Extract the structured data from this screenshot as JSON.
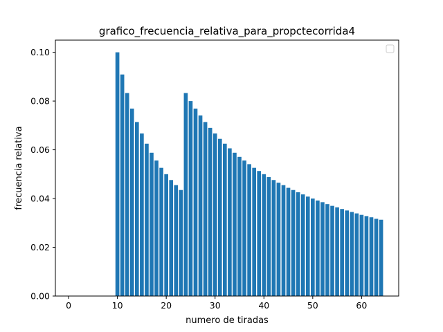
{
  "chart_data": {
    "type": "bar",
    "title": "grafico_frecuencia_relativa_para_propctecorrida4",
    "xlabel": "numero de tiradas",
    "ylabel": "frecuencia relativa",
    "x": [
      10,
      11,
      12,
      13,
      14,
      15,
      16,
      17,
      18,
      19,
      20,
      21,
      22,
      23,
      24,
      25,
      26,
      27,
      28,
      29,
      30,
      31,
      32,
      33,
      34,
      35,
      36,
      37,
      38,
      39,
      40,
      41,
      42,
      43,
      44,
      45,
      46,
      47,
      48,
      49,
      50,
      51,
      52,
      53,
      54,
      55,
      56,
      57,
      58,
      59,
      60,
      61,
      62,
      63,
      64
    ],
    "values": [
      0.1,
      0.0909,
      0.0833,
      0.0769,
      0.0714,
      0.0667,
      0.0625,
      0.0588,
      0.0556,
      0.0526,
      0.05,
      0.0476,
      0.0455,
      0.0435,
      0.0833,
      0.08,
      0.0769,
      0.0741,
      0.0714,
      0.069,
      0.0667,
      0.0645,
      0.0625,
      0.0606,
      0.0588,
      0.0571,
      0.0556,
      0.0541,
      0.0526,
      0.0513,
      0.05,
      0.0488,
      0.0476,
      0.0465,
      0.0455,
      0.0444,
      0.0435,
      0.0426,
      0.0417,
      0.0408,
      0.04,
      0.0392,
      0.0385,
      0.0377,
      0.037,
      0.0364,
      0.0357,
      0.0351,
      0.0345,
      0.0339,
      0.0333,
      0.0328,
      0.0323,
      0.0317,
      0.0313
    ],
    "xlim": [
      -2.7,
      67.6
    ],
    "ylim": [
      0,
      0.105
    ],
    "xticks": [
      "0",
      "10",
      "20",
      "30",
      "40",
      "50",
      "60"
    ],
    "yticks": [
      "0.00",
      "0.02",
      "0.04",
      "0.06",
      "0.08",
      "0.10"
    ],
    "bar_color": "#1f77b4",
    "legend_position": "top-right",
    "legend_entries": [],
    "grid": false
  }
}
